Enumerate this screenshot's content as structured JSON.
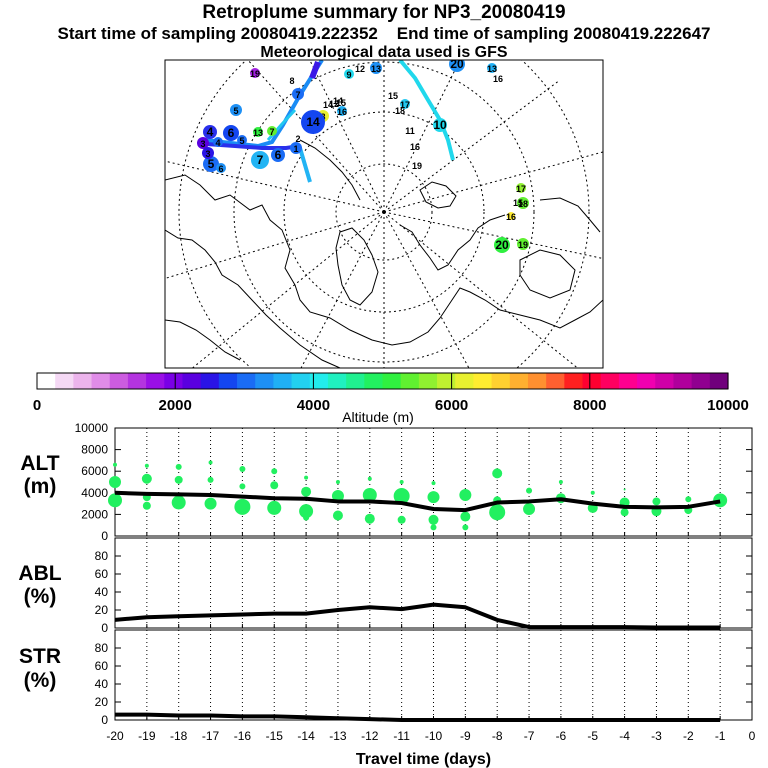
{
  "title": "Retroplume summary for NP3_20080419",
  "start_label": "Start time of sampling 20080419.222352",
  "end_label": "End time of sampling 20080419.222647",
  "met_label": "Meteorological data used is GFS",
  "colorbar": {
    "label": "Altitude (m)",
    "ticks": [
      "0",
      "2000",
      "4000",
      "6000",
      "8000",
      "10000"
    ],
    "colors": [
      "#ffffff",
      "#f5d9f5",
      "#ecb4ec",
      "#e08ce8",
      "#cc5ce0",
      "#b434e0",
      "#9a10e6",
      "#7a00e6",
      "#5a00e0",
      "#2a14e6",
      "#1446f0",
      "#1a6cf5",
      "#1e90f5",
      "#20b0f5",
      "#22d0f0",
      "#22ecec",
      "#20f0c0",
      "#20f090",
      "#22f060",
      "#30f040",
      "#60f030",
      "#90f030",
      "#c0f030",
      "#e8f030",
      "#ffec30",
      "#ffd030",
      "#ffb030",
      "#ff9030",
      "#ff6030",
      "#ff2020",
      "#ff0030",
      "#ff0060",
      "#ff0090",
      "#f000b0",
      "#d000a8",
      "#b0009c",
      "#900090",
      "#70007c"
    ]
  },
  "map_markers": [
    "19",
    "8",
    "7",
    "9",
    "12",
    "13",
    "14",
    "16",
    "15",
    "18",
    "17",
    "10",
    "11",
    "16",
    "19",
    "20",
    "7",
    "8",
    "14",
    "13",
    "5",
    "4",
    "5",
    "6",
    "7",
    "3",
    "6",
    "3",
    "4",
    "5",
    "6",
    "2",
    "17",
    "18",
    "16",
    "15",
    "20",
    "19",
    "13",
    "15",
    "16",
    "12",
    "14",
    "1"
  ],
  "chart_data": [
    {
      "type": "line",
      "panel": "ALT",
      "ylabel": [
        "ALT",
        "(m)"
      ],
      "ylim": [
        0,
        10000
      ],
      "yticks": [
        0,
        2000,
        4000,
        6000,
        8000,
        10000
      ],
      "xlim": [
        -20,
        0
      ],
      "x": [
        -20,
        -19,
        -18,
        -17,
        -16,
        -15,
        -14,
        -13,
        -12,
        -11,
        -10,
        -9,
        -8,
        -7,
        -6,
        -5,
        -4,
        -3,
        -2,
        -1
      ],
      "series": [
        {
          "name": "mean altitude",
          "values": [
            4000,
            3900,
            3850,
            3800,
            3650,
            3500,
            3450,
            3200,
            3200,
            3050,
            2500,
            2400,
            3100,
            3200,
            3400,
            3000,
            2700,
            2650,
            2700,
            3200
          ]
        }
      ]
    },
    {
      "type": "line",
      "panel": "ABL",
      "ylabel": [
        "ABL",
        "(%)"
      ],
      "ylim": [
        0,
        100
      ],
      "yticks": [
        0,
        20,
        40,
        60,
        80
      ],
      "xlim": [
        -20,
        0
      ],
      "x": [
        -20,
        -19,
        -18,
        -17,
        -16,
        -15,
        -14,
        -13,
        -12,
        -11,
        -10,
        -9,
        -8,
        -7,
        -6,
        -5,
        -4,
        -3,
        -2,
        -1
      ],
      "series": [
        {
          "name": "ABL fraction",
          "values": [
            9,
            12,
            13,
            14,
            15,
            16,
            16,
            20,
            23,
            21,
            26,
            23,
            9,
            1,
            1,
            1,
            1,
            0.5,
            0.5,
            0.5
          ]
        }
      ]
    },
    {
      "type": "line",
      "panel": "STR",
      "ylabel": [
        "STR",
        "(%)"
      ],
      "ylim": [
        0,
        100
      ],
      "yticks": [
        0,
        20,
        40,
        60,
        80
      ],
      "xlim": [
        -20,
        0
      ],
      "xlabel": "Travel time (days)",
      "xticks": [
        -20,
        -19,
        -18,
        -17,
        -16,
        -15,
        -14,
        -13,
        -12,
        -11,
        -10,
        -9,
        -8,
        -7,
        -6,
        -5,
        -4,
        -3,
        -2,
        -1,
        0
      ],
      "x": [
        -20,
        -19,
        -18,
        -17,
        -16,
        -15,
        -14,
        -13,
        -12,
        -11,
        -10,
        -9,
        -8,
        -7,
        -6,
        -5,
        -4,
        -3,
        -2,
        -1
      ],
      "series": [
        {
          "name": "stratospheric fraction",
          "values": [
            6,
            6,
            5,
            5,
            4,
            4,
            3,
            2,
            1,
            0,
            0,
            0,
            0,
            0,
            0,
            0,
            0,
            0,
            0,
            0
          ]
        }
      ]
    }
  ]
}
